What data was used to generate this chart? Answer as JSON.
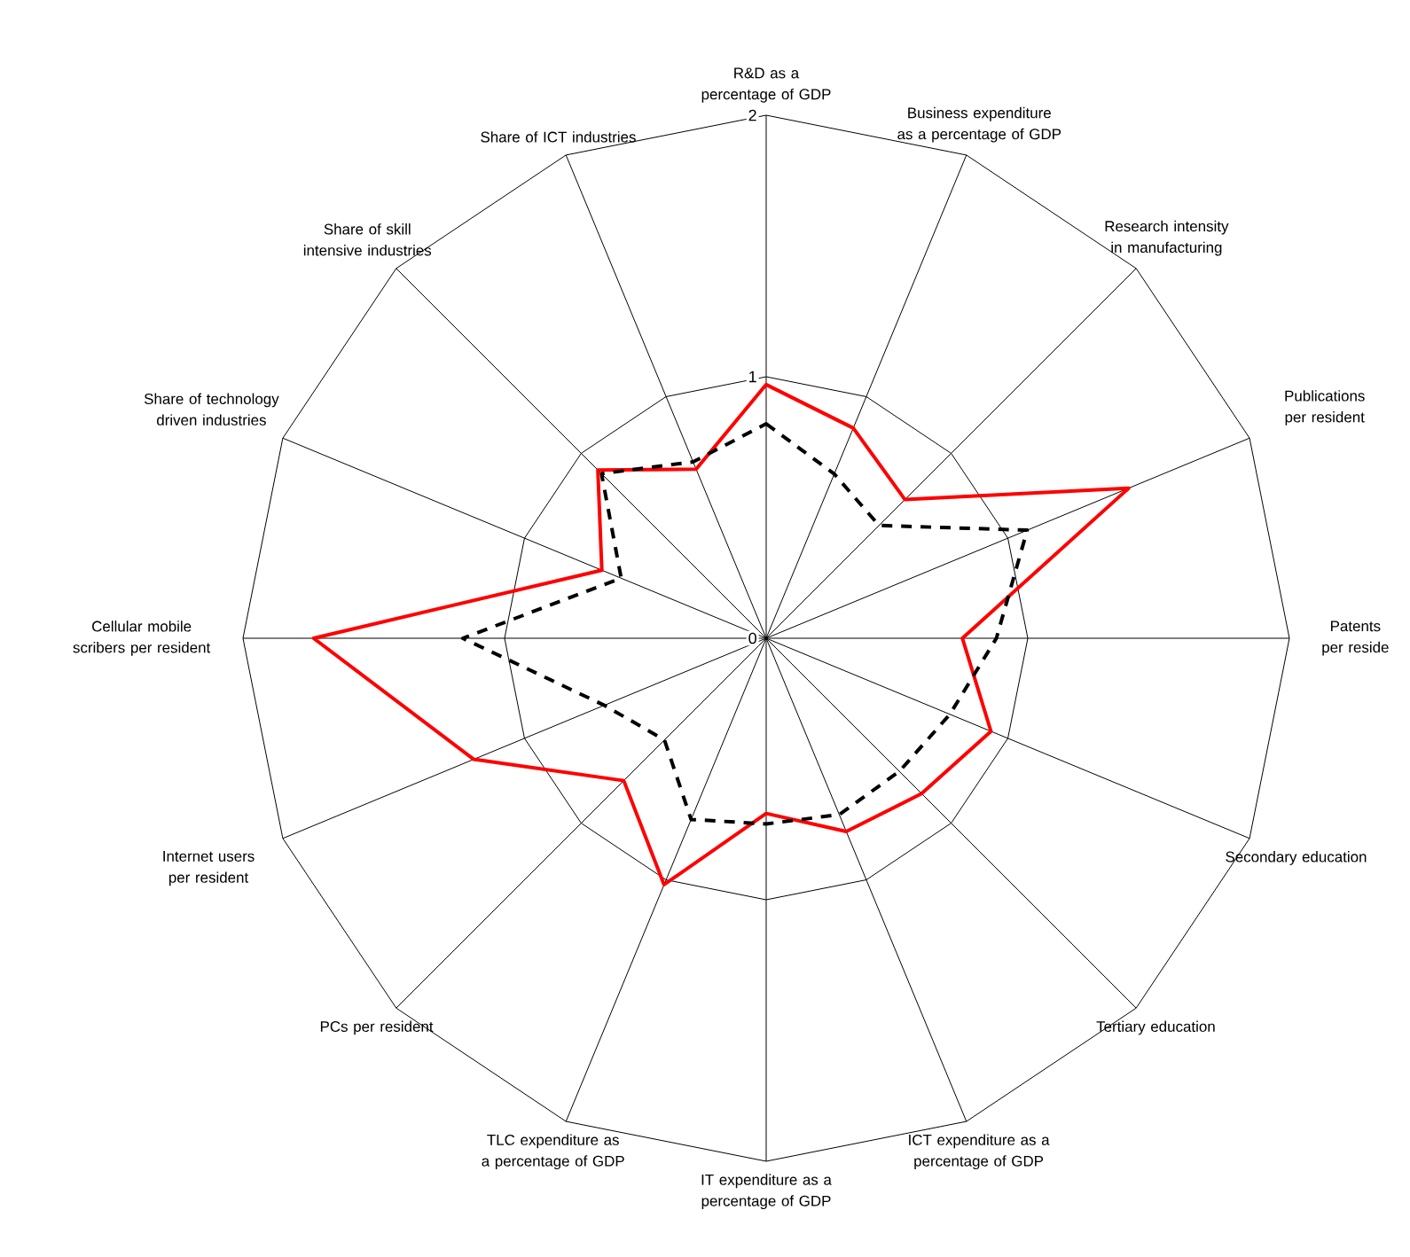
{
  "chart_data": {
    "type": "radar",
    "categories": [
      "R&D as a percentage of GDP",
      "Business expenditure as a percentage of GDP",
      "Research  intensity in manufacturing",
      "Publications per resident",
      "Patents per reside",
      "Secondary education",
      "Tertiary education",
      "ICT expenditure as a percentage of GDP",
      "IT expenditure as a percentage of GDP",
      "TLC expenditure as a percentage of GDP",
      "PCs per resident",
      "Internet users per resident",
      "Cellular mobile scribers per resident",
      "Share of technology driven industries",
      "Share of skill intensive industries",
      "Share of ICT industries"
    ],
    "series": [
      {
        "color": "#ff0000",
        "line_style": "solid",
        "values": [
          0.97,
          0.87,
          0.75,
          1.5,
          0.75,
          0.93,
          0.84,
          0.8,
          0.67,
          1.02,
          0.77,
          1.21,
          1.73,
          0.68,
          0.91,
          0.7
        ]
      },
      {
        "color": "#000000",
        "line_style": "dashed",
        "values": [
          0.82,
          0.68,
          0.61,
          1.08,
          0.88,
          0.76,
          0.72,
          0.73,
          0.71,
          0.75,
          0.55,
          0.67,
          1.16,
          0.6,
          0.89,
          0.73
        ]
      }
    ],
    "ylim": [
      0,
      2
    ],
    "yticks": [
      0,
      1,
      2
    ],
    "grid": true,
    "marker": "none"
  }
}
